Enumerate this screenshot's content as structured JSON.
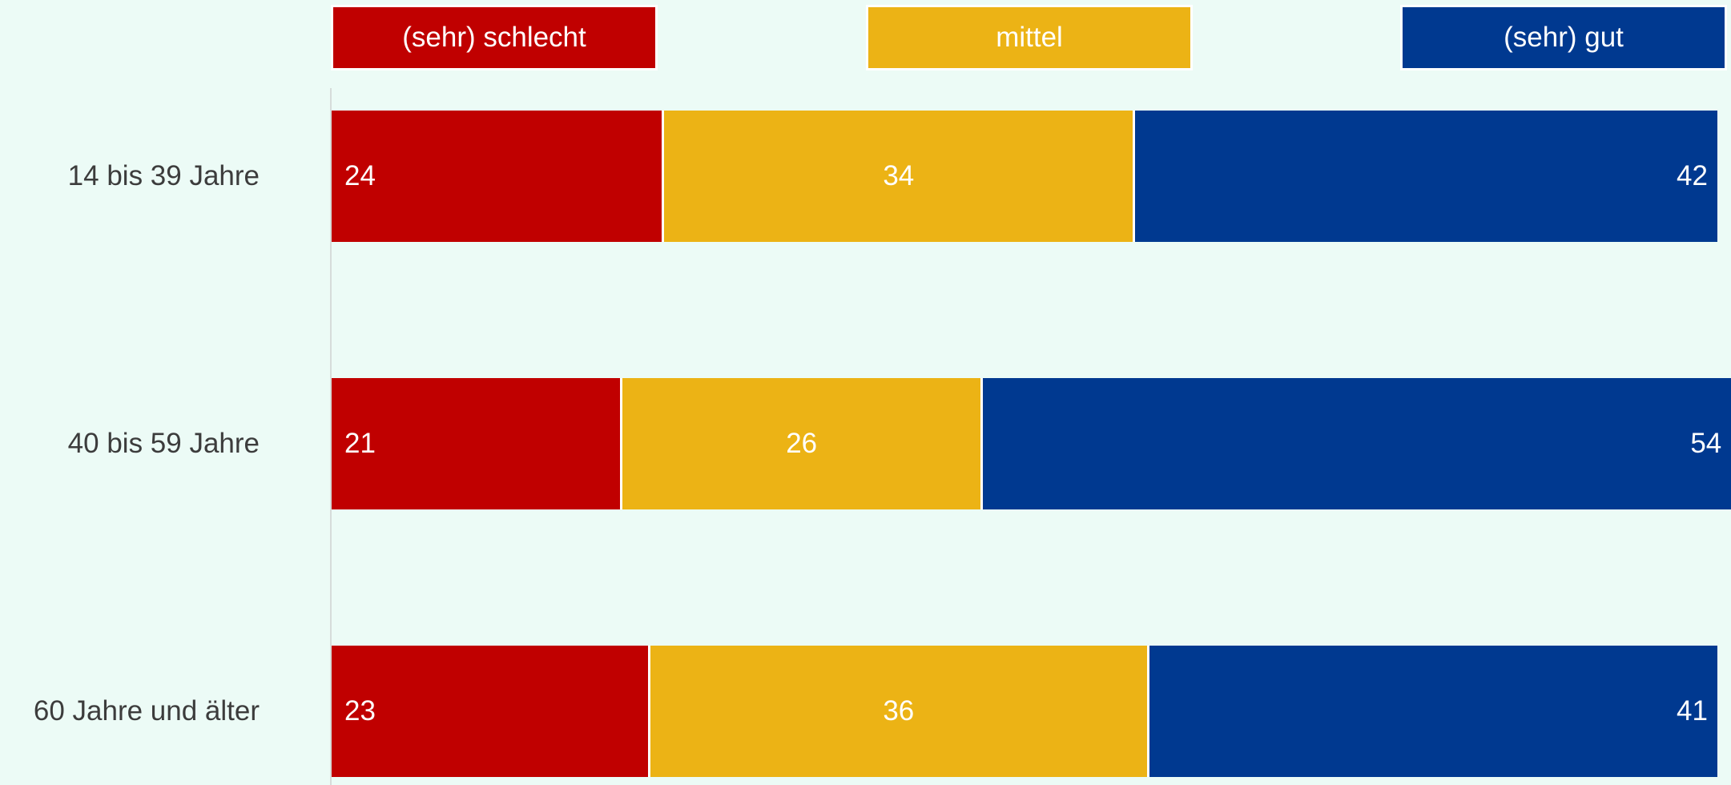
{
  "chart_data": {
    "type": "bar",
    "orientation": "horizontal",
    "stacked": true,
    "title": "",
    "xlabel": "",
    "ylabel": "",
    "xlim": [
      0,
      100
    ],
    "grid": false,
    "legend_position": "top",
    "categories": [
      "14 bis 39 Jahre",
      "40 bis 59 Jahre",
      "60 Jahre und älter"
    ],
    "series": [
      {
        "name": "(sehr) schlecht",
        "color": "#C00000",
        "values": [
          24,
          21,
          23
        ]
      },
      {
        "name": "mittel",
        "color": "#ECB315",
        "values": [
          34,
          26,
          36
        ]
      },
      {
        "name": "(sehr) gut",
        "color": "#003990",
        "values": [
          42,
          54,
          41
        ]
      }
    ]
  }
}
